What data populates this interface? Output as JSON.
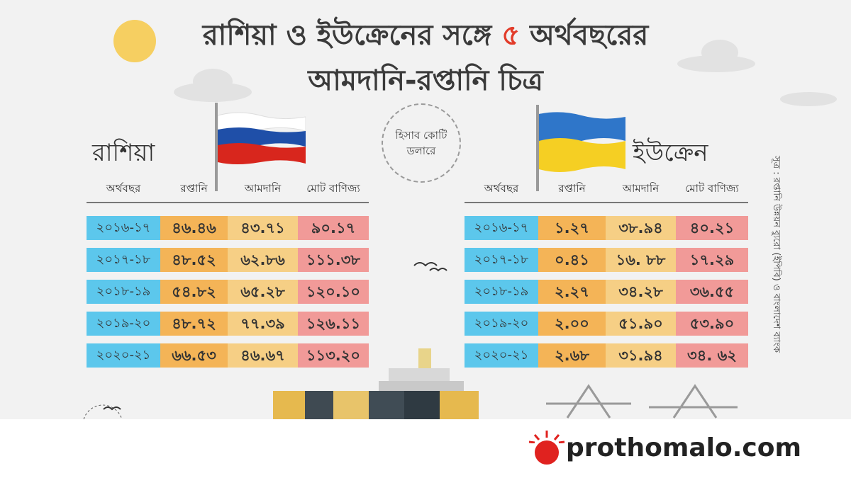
{
  "title_line1": "রাশিয়া ও ইউক্রেনের সঙ্গে",
  "title_five": "৫",
  "title_line1_end": "অর্থবছরের",
  "title_line2": "আমদানি-রপ্তানি চিত্র",
  "unit_line1": "হিসাব কোটি",
  "unit_line2": "ডলারে",
  "source": "সূত্র : রপ্তানি উন্নয়ন ব্যুরো (ইপিবি) ও বাংলাদেশ ব্যাংক",
  "brand": "prothomalo.com",
  "colors": {
    "year": "#5cc7ec",
    "export": "#f4b457",
    "import": "#f6cf85",
    "total": "#f19a98",
    "brand_red": "#e0221f"
  },
  "chart_data": [
    {
      "type": "table",
      "title": "রাশিয়া",
      "columns": [
        "অর্থবছর",
        "রপ্তানি",
        "আমদানি",
        "মোট বাণিজ্য"
      ],
      "rows": [
        [
          "২০১৬-১৭",
          "৪৬.৪৬",
          "৪৩.৭১",
          "৯০.১৭"
        ],
        [
          "২০১৭-১৮",
          "৪৮.৫২",
          "৬২.৮৬",
          "১১১.৩৮"
        ],
        [
          "২০১৮-১৯",
          "৫৪.৮২",
          "৬৫.২৮",
          "১২০.১০"
        ],
        [
          "২০১৯-২০",
          "৪৮.৭২",
          "৭৭.৩৯",
          "১২৬.১১"
        ],
        [
          "২০২০-২১",
          "৬৬.৫৩",
          "৪৬.৬৭",
          "১১৩.২০"
        ]
      ]
    },
    {
      "type": "table",
      "title": "ইউক্রেন",
      "columns": [
        "অর্থবছর",
        "রপ্তানি",
        "আমদানি",
        "মোট বাণিজ্য"
      ],
      "rows": [
        [
          "২০১৬-১৭",
          "১.২৭",
          "৩৮.৯৪",
          "৪০.২১"
        ],
        [
          "২০১৭-১৮",
          "০.৪১",
          "১৬. ৮৮",
          "১৭.২৯"
        ],
        [
          "২০১৮-১৯",
          "২.২৭",
          "৩৪.২৮",
          "৩৬.৫৫"
        ],
        [
          "২০১৯-২০",
          "২.০০",
          "৫১.৯০",
          "৫৩.৯০"
        ],
        [
          "২০২০-২১",
          "২.৬৮",
          "৩১.৯৪",
          "৩৪. ৬২"
        ]
      ]
    }
  ]
}
